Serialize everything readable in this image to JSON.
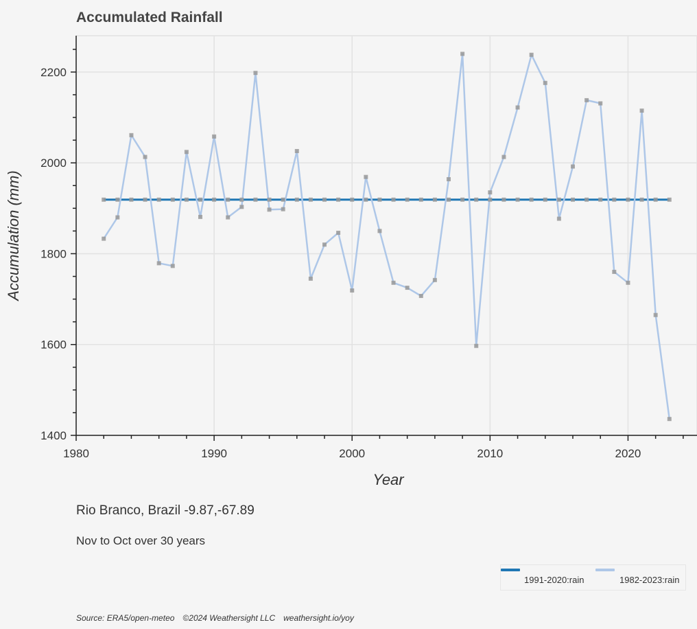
{
  "title": "Accumulated Rainfall",
  "location": "Rio Branco, Brazil -9.87,-67.89",
  "period": "Nov to Oct over 30 years",
  "footer": {
    "source": "Source: ERA5/open-meteo",
    "copyright": "©2024 Weathersight LLC",
    "site": "weathersight.io/yoy"
  },
  "legend": [
    {
      "label": "1991-2020:rain",
      "color": "#1f77b4"
    },
    {
      "label": "1982-2023:rain",
      "color": "#aec7e8"
    }
  ],
  "chart_data": {
    "type": "line",
    "title": "Accumulated Rainfall",
    "xlabel": "Year",
    "ylabel": "Accumulation (mm)",
    "xlim": [
      1980,
      2025
    ],
    "ylim": [
      1400,
      2280
    ],
    "xticks": [
      1980,
      1990,
      2000,
      2010,
      2020
    ],
    "yticks": [
      1400,
      1600,
      1800,
      2000,
      2200
    ],
    "grid": true,
    "legend_position": "bottom-right",
    "marker_color": "#999999",
    "x": [
      1982,
      1983,
      1984,
      1985,
      1986,
      1987,
      1988,
      1989,
      1990,
      1991,
      1992,
      1993,
      1994,
      1995,
      1996,
      1997,
      1998,
      1999,
      2000,
      2001,
      2002,
      2003,
      2004,
      2005,
      2006,
      2007,
      2008,
      2009,
      2010,
      2011,
      2012,
      2013,
      2014,
      2015,
      2016,
      2017,
      2018,
      2019,
      2020,
      2021,
      2022,
      2023
    ],
    "series": [
      {
        "name": "1991-2020:rain",
        "color": "#1f77b4",
        "values": [
          1919,
          1919,
          1919,
          1919,
          1919,
          1919,
          1919,
          1919,
          1919,
          1919,
          1919,
          1919,
          1919,
          1919,
          1919,
          1919,
          1919,
          1919,
          1919,
          1919,
          1919,
          1919,
          1919,
          1919,
          1919,
          1919,
          1919,
          1919,
          1919,
          1919,
          1919,
          1919,
          1919,
          1919,
          1919,
          1919,
          1919,
          1919,
          1919,
          1919,
          1919,
          1919
        ]
      },
      {
        "name": "1982-2023:rain",
        "color": "#aec7e8",
        "values": [
          1833,
          1880,
          2061,
          2013,
          1779,
          1773,
          2024,
          1881,
          2058,
          1880,
          1903,
          2198,
          1897,
          1898,
          2026,
          1745,
          1820,
          1846,
          1719,
          1969,
          1850,
          1736,
          1725,
          1707,
          1742,
          1964,
          2240,
          1597,
          1935,
          2013,
          2122,
          2238,
          2176,
          1877,
          1992,
          2138,
          2131,
          1760,
          1736,
          2115,
          1665,
          1436
        ]
      }
    ]
  }
}
